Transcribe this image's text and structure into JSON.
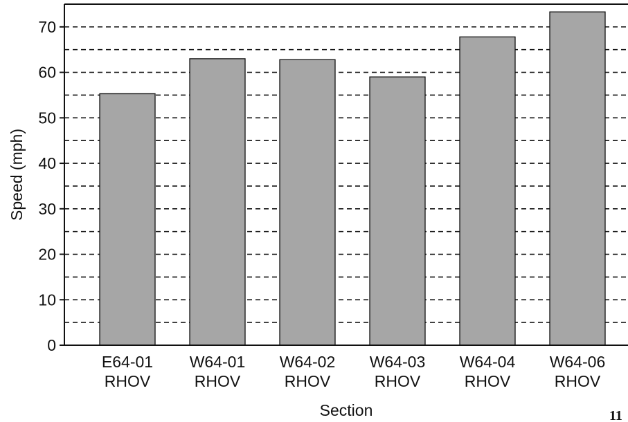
{
  "chart_data": {
    "type": "bar",
    "categories": [
      [
        "E64-01",
        "RHOV"
      ],
      [
        "W64-01",
        "RHOV"
      ],
      [
        "W64-02",
        "RHOV"
      ],
      [
        "W64-03",
        "RHOV"
      ],
      [
        "W64-04",
        "RHOV"
      ],
      [
        "W64-06",
        "RHOV"
      ]
    ],
    "values": [
      55.3,
      63.0,
      62.8,
      59.0,
      67.8,
      73.3
    ],
    "xlabel": "Section",
    "ylabel": "Speed (mph)",
    "ylim": [
      0,
      75
    ],
    "yticks": [
      0,
      10,
      20,
      30,
      40,
      50,
      60,
      70
    ],
    "grid": "dashed horizontal every 5",
    "bar_color": "#a6a6a6",
    "bar_edge_color": "#111111"
  },
  "page_number": "11"
}
